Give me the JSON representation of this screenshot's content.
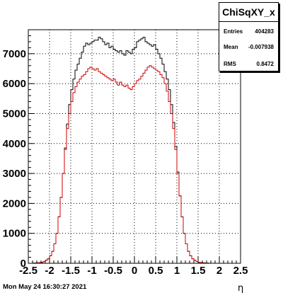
{
  "stats": {
    "title": "ChiSqXY_x",
    "rows": [
      {
        "label": "Entries",
        "value": "404283"
      },
      {
        "label": "Mean",
        "value": "-0.007938"
      },
      {
        "label": "RMS",
        "value": "0.8472"
      }
    ]
  },
  "timestamp": "Mon May 24 16:30:27 2021",
  "chart_data": {
    "type": "histogram",
    "xlabel": "η",
    "ylabel": "",
    "xlim": [
      -2.5,
      2.5
    ],
    "ylim": [
      0,
      7800
    ],
    "x_ticks": [
      "-2.5",
      "-2",
      "-1.5",
      "-1",
      "-0.5",
      "0",
      "0.5",
      "1",
      "1.5",
      "2",
      "2.5"
    ],
    "y_ticks": [
      "0",
      "1000",
      "2000",
      "3000",
      "4000",
      "5000",
      "6000",
      "7000"
    ],
    "grid": true,
    "bin_edges": [
      -2.5,
      -2.45,
      -2.4,
      -2.35,
      -2.3,
      -2.25,
      -2.2,
      -2.15,
      -2.1,
      -2.05,
      -2.0,
      -1.95,
      -1.9,
      -1.85,
      -1.8,
      -1.75,
      -1.7,
      -1.65,
      -1.6,
      -1.55,
      -1.5,
      -1.45,
      -1.4,
      -1.35,
      -1.3,
      -1.25,
      -1.2,
      -1.15,
      -1.1,
      -1.05,
      -1.0,
      -0.95,
      -0.9,
      -0.85,
      -0.8,
      -0.75,
      -0.7,
      -0.65,
      -0.6,
      -0.55,
      -0.5,
      -0.45,
      -0.4,
      -0.35,
      -0.3,
      -0.25,
      -0.2,
      -0.15,
      -0.1,
      -0.05,
      0.0,
      0.05,
      0.1,
      0.15,
      0.2,
      0.25,
      0.3,
      0.35,
      0.4,
      0.45,
      0.5,
      0.55,
      0.6,
      0.65,
      0.7,
      0.75,
      0.8,
      0.85,
      0.9,
      0.95,
      1.0,
      1.05,
      1.1,
      1.15,
      1.2,
      1.25,
      1.3,
      1.35,
      1.4,
      1.45,
      1.5,
      1.55,
      1.6,
      1.65,
      1.7,
      1.75,
      1.8,
      1.85,
      1.9,
      1.95,
      2.0,
      2.05,
      2.1,
      2.15,
      2.2,
      2.25,
      2.3,
      2.35,
      2.4,
      2.45,
      2.5
    ],
    "series": [
      {
        "color": "#000000",
        "values": [
          0,
          0,
          5,
          10,
          15,
          20,
          30,
          60,
          100,
          150,
          250,
          400,
          650,
          1000,
          1550,
          2200,
          3000,
          3850,
          4650,
          5300,
          5800,
          6150,
          6450,
          6650,
          6850,
          7050,
          7250,
          7350,
          7300,
          7350,
          7400,
          7450,
          7450,
          7550,
          7500,
          7400,
          7300,
          7350,
          7200,
          7250,
          7150,
          7100,
          7050,
          7100,
          7000,
          6950,
          7100,
          7050,
          7000,
          7150,
          7200,
          7400,
          7450,
          7500,
          7550,
          7400,
          7350,
          7300,
          7250,
          7300,
          7150,
          7000,
          6850,
          6650,
          6400,
          6150,
          5800,
          5300,
          4700,
          3900,
          3050,
          2250,
          1550,
          1000,
          650,
          400,
          250,
          150,
          100,
          60,
          30,
          20,
          15,
          10,
          5,
          0,
          0,
          0,
          0,
          0,
          0,
          0,
          0,
          0,
          0,
          0,
          0,
          0,
          0,
          0
        ]
      },
      {
        "color": "#cc0000",
        "values": [
          0,
          0,
          5,
          10,
          15,
          20,
          30,
          60,
          100,
          150,
          250,
          400,
          650,
          1000,
          1550,
          2200,
          3000,
          3800,
          4500,
          5000,
          5400,
          5700,
          5900,
          6050,
          6150,
          6250,
          6300,
          6400,
          6500,
          6550,
          6500,
          6450,
          6500,
          6400,
          6350,
          6300,
          6250,
          6200,
          6150,
          6100,
          6150,
          6050,
          5950,
          6050,
          5950,
          5900,
          5950,
          5850,
          5800,
          5900,
          6000,
          6100,
          6150,
          6250,
          6350,
          6450,
          6550,
          6600,
          6550,
          6500,
          6450,
          6400,
          6300,
          6200,
          6000,
          5750,
          5400,
          5000,
          4500,
          3800,
          3000,
          2250,
          1550,
          1000,
          650,
          400,
          250,
          150,
          100,
          60,
          30,
          20,
          15,
          10,
          5,
          0,
          0,
          0,
          0,
          0,
          0,
          0,
          0,
          0,
          0,
          0,
          0,
          0,
          0,
          0
        ]
      }
    ]
  }
}
